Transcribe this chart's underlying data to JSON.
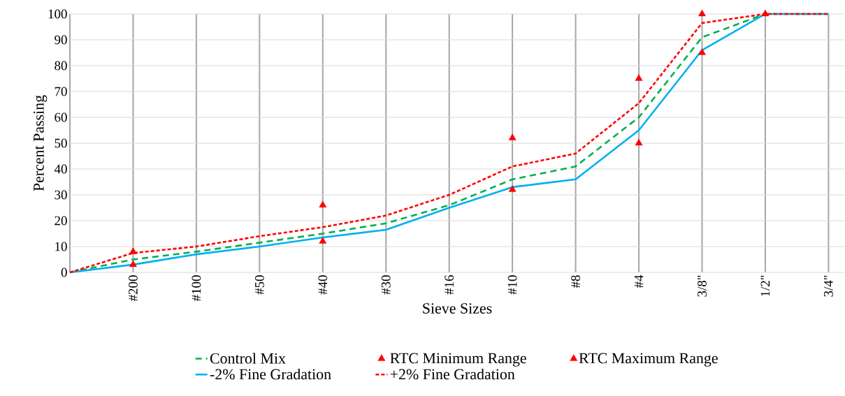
{
  "chart_data": {
    "type": "line",
    "xlabel": "Sieve Sizes",
    "ylabel": "Percent Passing",
    "categories": [
      null,
      "#200",
      "#100",
      "#50",
      "#40",
      "#30",
      "#16",
      "#10",
      "#8",
      "#4",
      "3/8\"",
      "1/2\"",
      "3/4\""
    ],
    "ylim": [
      0,
      100
    ],
    "yticks": [
      0,
      10,
      20,
      30,
      40,
      50,
      60,
      70,
      80,
      90,
      100
    ],
    "grid": true,
    "legend": "bottom",
    "series": [
      {
        "name": "Control Mix",
        "color": "#00b050",
        "line_style": "dashed",
        "marker": "none",
        "values": [
          0,
          5,
          8,
          11.5,
          15,
          19,
          26,
          36,
          41,
          60,
          91,
          100,
          100
        ]
      },
      {
        "name": "RTC Minimum Range",
        "type": "scatter",
        "color": "#ff0000",
        "marker": "triangle",
        "values": [
          null,
          3,
          null,
          null,
          12,
          null,
          null,
          32,
          null,
          50,
          85,
          100,
          null
        ]
      },
      {
        "name": "RTC Maximum Range",
        "type": "scatter",
        "color": "#ff0000",
        "marker": "triangle",
        "values": [
          null,
          8,
          null,
          null,
          26,
          null,
          null,
          52,
          null,
          75,
          100,
          null,
          null
        ]
      },
      {
        "name": "-2% Fine Gradation",
        "color": "#00b0f0",
        "line_style": "solid",
        "marker": "none",
        "values": [
          0,
          3,
          7,
          10,
          13.5,
          16.5,
          25,
          33,
          36,
          55,
          86,
          100,
          100
        ]
      },
      {
        "name": "+2% Fine Gradation",
        "color": "#ff0000",
        "line_style": "dotted",
        "marker": "none",
        "values": [
          0,
          7.5,
          10,
          14,
          17.5,
          22,
          30,
          41,
          46,
          65.5,
          96.5,
          100,
          100
        ]
      }
    ]
  }
}
